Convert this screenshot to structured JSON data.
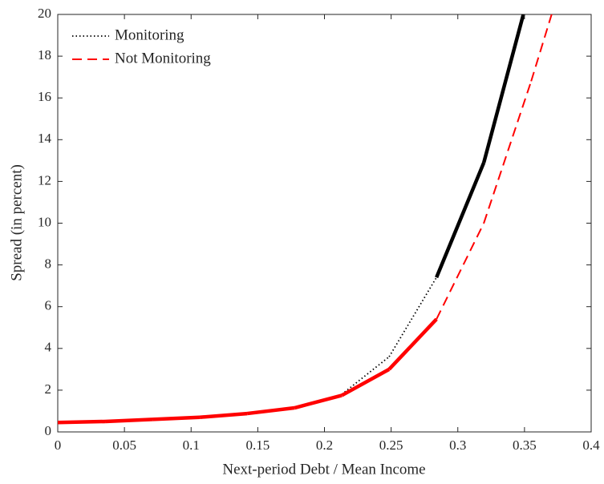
{
  "chart_data": {
    "type": "line",
    "x_label": "Next-period Debt / Mean Income",
    "y_label": "Spread (in percent)",
    "x": [
      0,
      0.0355,
      0.071,
      0.1065,
      0.142,
      0.1775,
      0.213,
      0.2485,
      0.284,
      0.3195,
      0.355,
      0.3905
    ],
    "series": [
      {
        "name": "Monitoring",
        "color": "#000000",
        "legend_style": "dotted",
        "values": [
          null,
          null,
          null,
          null,
          null,
          null,
          1.8,
          3.6,
          7.4,
          12.9,
          21.4,
          null
        ],
        "segment_styles": [
          "thick",
          "thick",
          "thick",
          "thick",
          "thick",
          "thick",
          "dotted",
          "dotted",
          "thick",
          "thick",
          "thick"
        ]
      },
      {
        "name": "Not Monitoring",
        "color": "#ff0000",
        "legend_style": "dashed",
        "values": [
          0.45,
          0.5,
          0.6,
          0.7,
          0.88,
          1.15,
          1.75,
          3.0,
          5.4,
          10.0,
          16.8,
          24.2
        ],
        "segment_styles": [
          "thick",
          "thick",
          "thick",
          "thick",
          "thick",
          "thick",
          "thick",
          "thick",
          "dashed",
          "dashed",
          "dashed"
        ]
      }
    ],
    "xlim": [
      0,
      0.4
    ],
    "ylim": [
      0,
      20
    ],
    "xticks": [
      0,
      0.05,
      0.1,
      0.15,
      0.2,
      0.25,
      0.3,
      0.35,
      0.4
    ],
    "yticks": [
      0,
      2,
      4,
      6,
      8,
      10,
      12,
      14,
      16,
      18,
      20
    ],
    "legend": "upper left"
  }
}
